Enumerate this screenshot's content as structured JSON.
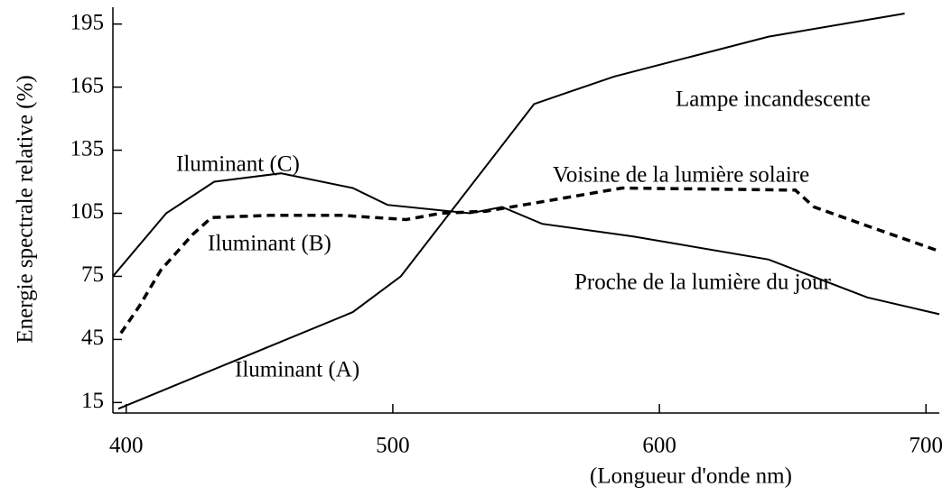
{
  "chart_data": {
    "type": "line",
    "ylabel": "Energie spectrale relative (%)",
    "xlabel": "(Longueur d'onde nm)",
    "xlim": [
      395,
      705
    ],
    "xticks": [
      400,
      500,
      600,
      700
    ],
    "ylim": [
      10,
      203
    ],
    "yticks": [
      15,
      45,
      75,
      105,
      135,
      165,
      195
    ],
    "series": [
      {
        "name": "Iluminant (A)",
        "color": "#000000",
        "style": "solid",
        "x": [
          397,
          485,
          503,
          553,
          583,
          641,
          692
        ],
        "values": [
          12,
          58,
          75,
          157,
          170,
          189,
          200
        ]
      },
      {
        "name": "Iluminant (B)",
        "color": "#000000",
        "style": "dashed",
        "x": [
          398,
          405,
          413,
          425,
          432,
          454,
          481,
          505,
          518,
          535,
          563,
          586,
          651,
          658,
          678,
          705
        ],
        "values": [
          48,
          61,
          78,
          95,
          103,
          104,
          104,
          102,
          105,
          106,
          112,
          117,
          116,
          108,
          99,
          87
        ]
      },
      {
        "name": "Iluminant (C)",
        "color": "#000000",
        "style": "solid",
        "x": [
          395,
          415,
          433,
          458,
          485,
          498,
          529,
          541,
          556,
          590,
          641,
          678,
          705
        ],
        "values": [
          75,
          105,
          120,
          124,
          117,
          109,
          105,
          108,
          100,
          94,
          83,
          65,
          57
        ]
      }
    ],
    "annotations": [
      "Lampe incandescente",
      "Voisine de la lumière solaire",
      "Proche de la lumière du jour"
    ]
  }
}
